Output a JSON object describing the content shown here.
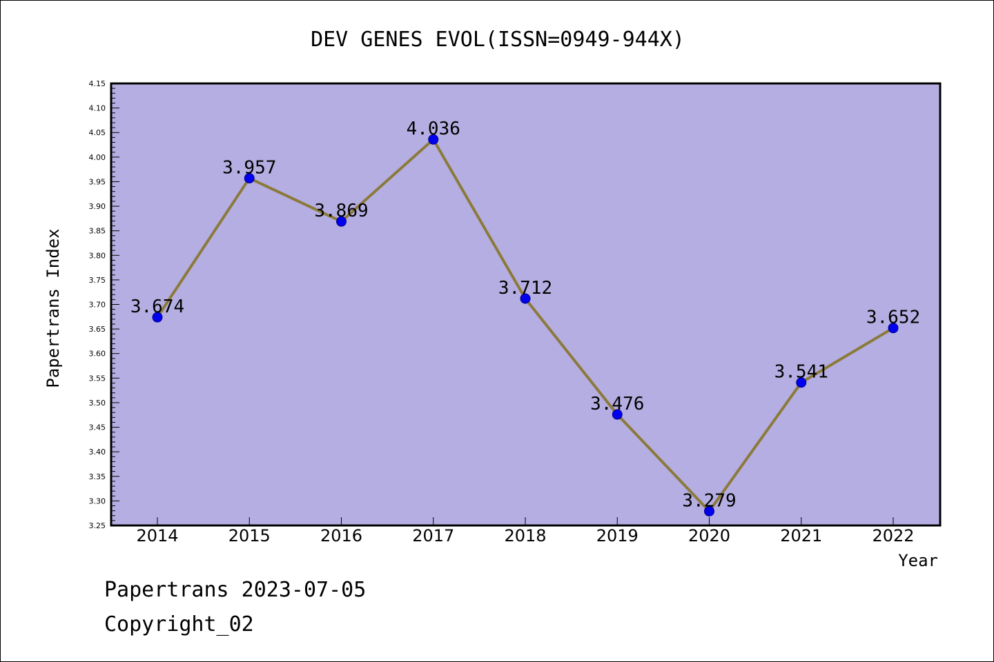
{
  "chart_data": {
    "type": "line",
    "title": "DEV GENES EVOL(ISSN=0949-944X)",
    "xlabel": "Year",
    "ylabel": "Papertrans Index",
    "categories": [
      "2014",
      "2015",
      "2016",
      "2017",
      "2018",
      "2019",
      "2020",
      "2021",
      "2022"
    ],
    "series": [
      {
        "values": [
          3.674,
          3.957,
          3.869,
          4.036,
          3.712,
          3.476,
          3.279,
          3.541,
          3.652
        ],
        "labels": [
          "3.674",
          "3.957",
          "3.869",
          "4.036",
          "3.712",
          "3.476",
          "3.279",
          "3.541",
          "3.652"
        ]
      }
    ],
    "ylim": [
      3.25,
      4.15
    ],
    "yticks": [
      "3.25",
      "3.30",
      "3.35",
      "3.40",
      "3.45",
      "3.50",
      "3.55",
      "3.60",
      "3.65",
      "3.70",
      "3.75",
      "3.80",
      "3.85",
      "3.90",
      "3.95",
      "4.00",
      "4.05",
      "4.10",
      "4.15"
    ],
    "grid": false,
    "colors": {
      "plot_background": "#b5aee2",
      "line": "#8b7a3a",
      "marker": "#0000ee"
    }
  },
  "footer": {
    "line1": "Papertrans 2023-07-05",
    "line2": "Copyright_02"
  }
}
